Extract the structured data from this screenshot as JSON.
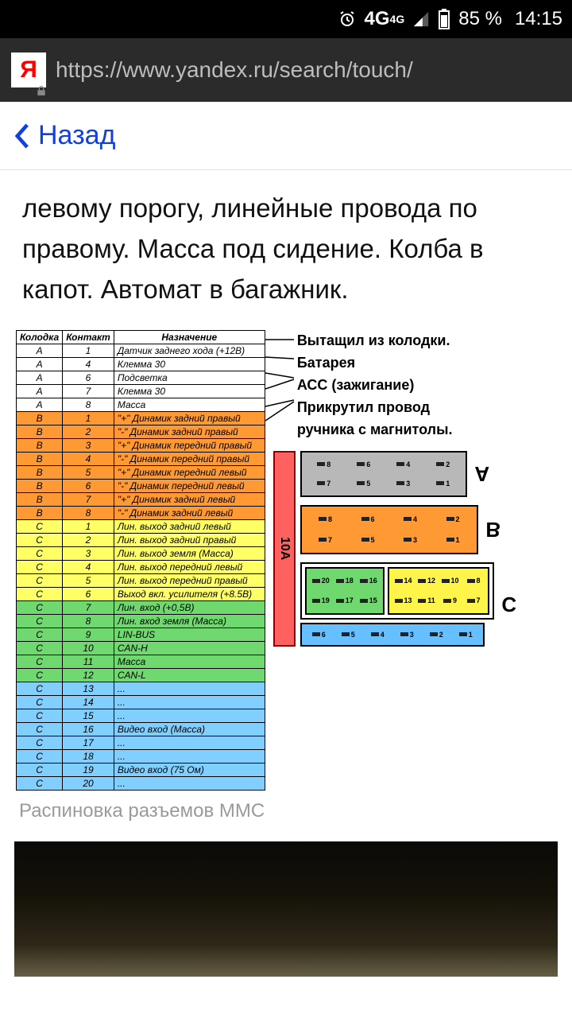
{
  "status": {
    "network": "4G",
    "network_sup": "4G",
    "battery_pct": "85 %",
    "time": "14:15"
  },
  "browser": {
    "url": "https://www.yandex.ru/search/touch/"
  },
  "nav": {
    "back_label": "Назад"
  },
  "body_text": "левому порогу, линейные провода по правому. Масса под сидение. Колба в капот. Автомат в багажник.",
  "table": {
    "headers": [
      "Колодка",
      "Контакт",
      "Назначение"
    ],
    "row_colors": {
      "A": "#ffffff",
      "B": "#ff9933",
      "Cy": "#ffff66",
      "Cg": "#6fd96f",
      "Cb": "#80cfff"
    },
    "rows": [
      {
        "k": "A",
        "c": "1",
        "n": "Датчик заднего хода (+12В)",
        "bg": "A"
      },
      {
        "k": "A",
        "c": "4",
        "n": "Клемма 30",
        "bg": "A"
      },
      {
        "k": "A",
        "c": "6",
        "n": "Подсветка",
        "bg": "A"
      },
      {
        "k": "A",
        "c": "7",
        "n": "Клемма 30",
        "bg": "A"
      },
      {
        "k": "A",
        "c": "8",
        "n": "Масса",
        "bg": "A"
      },
      {
        "k": "B",
        "c": "1",
        "n": "\"+\" Динамик задний правый",
        "bg": "B"
      },
      {
        "k": "B",
        "c": "2",
        "n": "\"-\" Динамик задний правый",
        "bg": "B"
      },
      {
        "k": "B",
        "c": "3",
        "n": "\"+\" Динамик передний правый",
        "bg": "B"
      },
      {
        "k": "B",
        "c": "4",
        "n": "\"-\" Динамик передний правый",
        "bg": "B"
      },
      {
        "k": "B",
        "c": "5",
        "n": "\"+\" Динамик передний левый",
        "bg": "B"
      },
      {
        "k": "B",
        "c": "6",
        "n": "\"-\" Динамик передний левый",
        "bg": "B"
      },
      {
        "k": "B",
        "c": "7",
        "n": "\"+\" Динамик задний левый",
        "bg": "B"
      },
      {
        "k": "B",
        "c": "8",
        "n": "\"-\" Динамик задний левый",
        "bg": "B"
      },
      {
        "k": "C",
        "c": "1",
        "n": "Лин. выход задний левый",
        "bg": "Cy"
      },
      {
        "k": "C",
        "c": "2",
        "n": "Лин. выход задний правый",
        "bg": "Cy"
      },
      {
        "k": "C",
        "c": "3",
        "n": "Лин. выход земля (Масса)",
        "bg": "Cy"
      },
      {
        "k": "C",
        "c": "4",
        "n": "Лин. выход передний левый",
        "bg": "Cy"
      },
      {
        "k": "C",
        "c": "5",
        "n": "Лин. выход передний правый",
        "bg": "Cy"
      },
      {
        "k": "C",
        "c": "6",
        "n": "Выход вкл. усилителя (+8.5В)",
        "bg": "Cy"
      },
      {
        "k": "C",
        "c": "7",
        "n": "Лин. вход (+0,5В)",
        "bg": "Cg"
      },
      {
        "k": "C",
        "c": "8",
        "n": "Лин. вход земля (Масса)",
        "bg": "Cg"
      },
      {
        "k": "C",
        "c": "9",
        "n": "LIN-BUS",
        "bg": "Cg"
      },
      {
        "k": "C",
        "c": "10",
        "n": "CAN-H",
        "bg": "Cg"
      },
      {
        "k": "C",
        "c": "11",
        "n": "Масса",
        "bg": "Cg"
      },
      {
        "k": "C",
        "c": "12",
        "n": "CAN-L",
        "bg": "Cg"
      },
      {
        "k": "C",
        "c": "13",
        "n": "...",
        "bg": "Cb"
      },
      {
        "k": "C",
        "c": "14",
        "n": "...",
        "bg": "Cb"
      },
      {
        "k": "C",
        "c": "15",
        "n": "...",
        "bg": "Cb"
      },
      {
        "k": "C",
        "c": "16",
        "n": "Видео вход (Масса)",
        "bg": "Cb"
      },
      {
        "k": "C",
        "c": "17",
        "n": "...",
        "bg": "Cb"
      },
      {
        "k": "C",
        "c": "18",
        "n": "...",
        "bg": "Cb"
      },
      {
        "k": "C",
        "c": "19",
        "n": "Видео вход (75 Ом)",
        "bg": "Cb"
      },
      {
        "k": "C",
        "c": "20",
        "n": "...",
        "bg": "Cb"
      }
    ]
  },
  "annotations": {
    "l1": "Вытащил из колодки.",
    "l2": "Батарея",
    "l3": "АСС (зажигание)",
    "l4": "Прикрутил провод",
    "l5": "ручника с магнитолы."
  },
  "diagram": {
    "fuse_label": "10A",
    "A_pins_top": [
      "8",
      "6",
      "4",
      "2"
    ],
    "A_pins_bot": [
      "7",
      "5",
      "3",
      "1"
    ],
    "B_pins_top": [
      "8",
      "6",
      "4",
      "2"
    ],
    "B_pins_bot": [
      "7",
      "5",
      "3",
      "1"
    ],
    "C1_top": [
      "20",
      "18",
      "16"
    ],
    "C1_bot": [
      "19",
      "17",
      "15"
    ],
    "C2_top": [
      "14",
      "12",
      "10",
      "8"
    ],
    "C2_bot": [
      "13",
      "11",
      "9",
      "7"
    ],
    "Cb": [
      "6",
      "5",
      "4",
      "3",
      "2",
      "1"
    ],
    "labels": {
      "A": "A",
      "B": "B",
      "C": "C"
    },
    "colors": {
      "A": "#b8b8b8",
      "B": "#ff9933",
      "Cg": "#6fd96f",
      "Cy": "#fff44a",
      "Cb": "#66bfff",
      "fuse": "#ff6060"
    }
  },
  "caption": "Распиновка разъемов ММС"
}
